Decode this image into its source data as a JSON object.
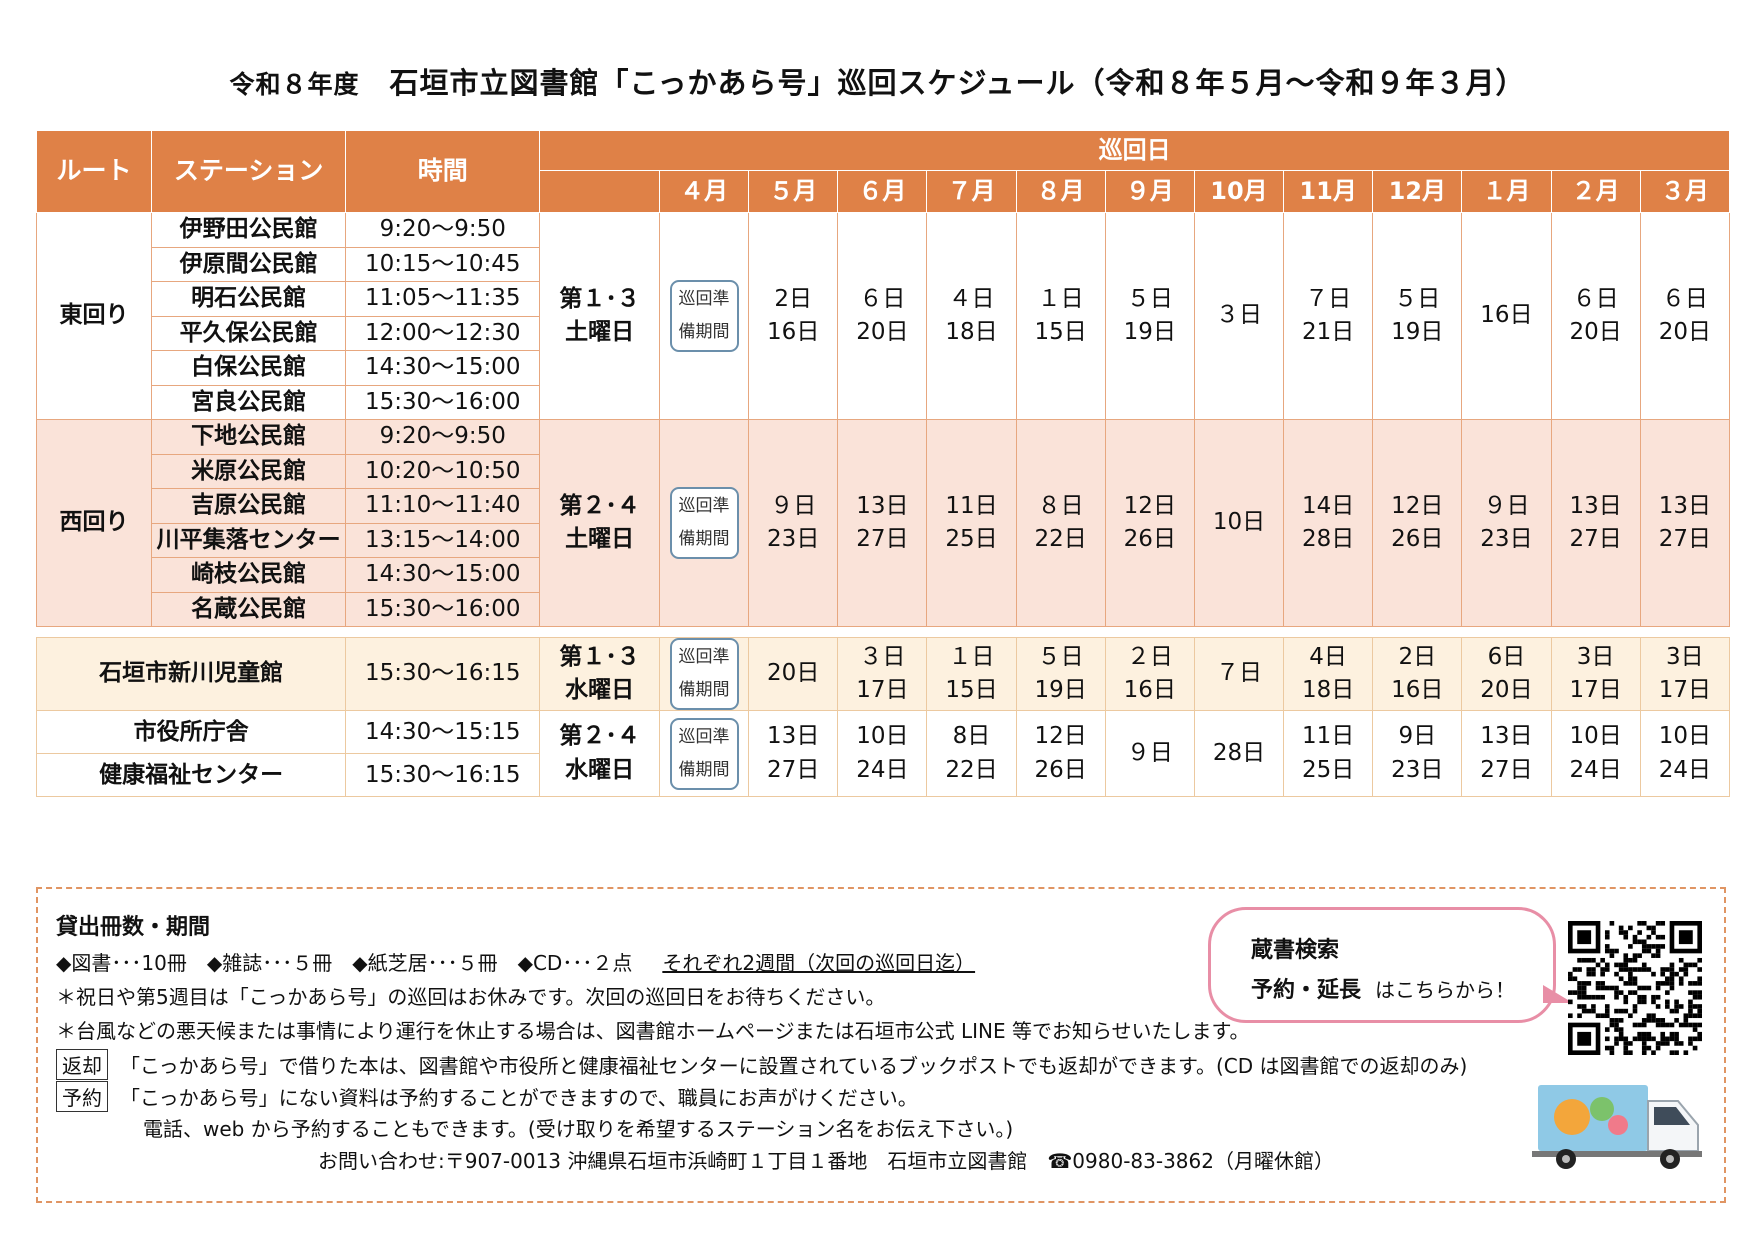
{
  "title": {
    "pre": "令和８年度",
    "main": "石垣市立図書館「こっかあら号」巡回スケジュール（令和８年５月～令和９年３月）"
  },
  "header": {
    "route": "ルート",
    "station": "ステーション",
    "time": "時間",
    "round_day": "巡回日",
    "months": [
      "４月",
      "５月",
      "６月",
      "７月",
      "８月",
      "９月",
      "10月",
      "11月",
      "12月",
      "１月",
      "２月",
      "３月"
    ]
  },
  "prep_lines": [
    "巡回準",
    "備期間"
  ],
  "east": {
    "route": "東回り",
    "stations": [
      {
        "name": "伊野田公民館",
        "time": "9:20～9:50"
      },
      {
        "name": "伊原間公民館",
        "time": "10:15～10:45"
      },
      {
        "name": "明石公民館",
        "time": "11:05～11:35"
      },
      {
        "name": "平久保公民館",
        "time": "12:00～12:30"
      },
      {
        "name": "白保公民館",
        "time": "14:30～15:00"
      },
      {
        "name": "宮良公民館",
        "time": "15:30～16:00"
      }
    ],
    "week": [
      "第１･３",
      "土曜日"
    ],
    "dates": [
      [
        "2日",
        "16日"
      ],
      [
        "６日",
        "20日"
      ],
      [
        "４日",
        "18日"
      ],
      [
        "１日",
        "15日"
      ],
      [
        "５日",
        "19日"
      ],
      [
        "３日"
      ],
      [
        "７日",
        "21日"
      ],
      [
        "５日",
        "19日"
      ],
      [
        "16日"
      ],
      [
        "６日",
        "20日"
      ],
      [
        "６日",
        "20日"
      ]
    ]
  },
  "west": {
    "route": "西回り",
    "stations": [
      {
        "name": "下地公民館",
        "time": "9:20～9:50"
      },
      {
        "name": "米原公民館",
        "time": "10:20～10:50"
      },
      {
        "name": "吉原公民館",
        "time": "11:10～11:40"
      },
      {
        "name": "川平集落センター",
        "time": "13:15～14:00"
      },
      {
        "name": "崎枝公民館",
        "time": "14:30～15:00"
      },
      {
        "name": "名蔵公民館",
        "time": "15:30～16:00"
      }
    ],
    "week": [
      "第２･４",
      "土曜日"
    ],
    "dates": [
      [
        "９日",
        "23日"
      ],
      [
        "13日",
        "27日"
      ],
      [
        "11日",
        "25日"
      ],
      [
        "８日",
        "22日"
      ],
      [
        "12日",
        "26日"
      ],
      [
        "10日"
      ],
      [
        "14日",
        "28日"
      ],
      [
        "12日",
        "26日"
      ],
      [
        "９日",
        "23日"
      ],
      [
        "13日",
        "27日"
      ],
      [
        "13日",
        "27日"
      ]
    ]
  },
  "kids": {
    "station": "石垣市新川児童館",
    "time": "15:30～16:15",
    "week": [
      "第１･３",
      "水曜日"
    ],
    "dates": [
      [
        "20日"
      ],
      [
        "３日",
        "17日"
      ],
      [
        "１日",
        "15日"
      ],
      [
        "５日",
        "19日"
      ],
      [
        "２日",
        "16日"
      ],
      [
        "７日"
      ],
      [
        "4日",
        "18日"
      ],
      [
        "2日",
        "16日"
      ],
      [
        "6日",
        "20日"
      ],
      [
        "3日",
        "17日"
      ],
      [
        "3日",
        "17日"
      ]
    ]
  },
  "city": {
    "stations": [
      {
        "name": "市役所庁舎",
        "time": "14:30～15:15"
      },
      {
        "name": "健康福祉センター",
        "time": "15:30～16:15"
      }
    ],
    "week": [
      "第２･４",
      "水曜日"
    ],
    "dates": [
      [
        "13日",
        "27日"
      ],
      [
        "10日",
        "24日"
      ],
      [
        "8日",
        "22日"
      ],
      [
        "12日",
        "26日"
      ],
      [
        "９日"
      ],
      [
        "28日"
      ],
      [
        "11日",
        "25日"
      ],
      [
        "9日",
        "23日"
      ],
      [
        "13日",
        "27日"
      ],
      [
        "10日",
        "24日"
      ],
      [
        "10日",
        "24日"
      ]
    ]
  },
  "info": {
    "heading": "貸出冊数・期間",
    "loan_items": "◆図書･･･10冊　◆雑誌･･･５冊　◆紙芝居･･･５冊　◆CD･･･２点",
    "loan_period": "それぞれ2週間（次回の巡回日迄）",
    "note1": "＊祝日や第5週目は「こっかあら号」の巡回はお休みです。次回の巡回日をお待ちください。",
    "note2": "＊台風などの悪天候または事情により運行を休止する場合は、図書館ホームページまたは石垣市公式 LINE 等でお知らせいたします。",
    "return_tag": "返却",
    "return_text": "「こっかあら号」で借りた本は、図書館や市役所と健康福祉センターに設置されているブックポストでも返却ができます。(CD は図書館での返却のみ)",
    "reserve_tag": "予約",
    "reserve_text": "「こっかあら号」にない資料は予約することができますので、職員にお声がけください。",
    "reserve_text2": "電話、web から予約することもできます。(受け取りを希望するステーション名をお伝え下さい。)",
    "contact": "お問い合わせ:〒907-0013 沖縄県石垣市浜崎町１丁目１番地　石垣市立図書館　☎0980-83-3862（月曜休館）",
    "bubble_line1": "蔵書検索",
    "bubble_line2": "予約・延長",
    "bubble_line2b": "はこちらから！"
  },
  "colors": {
    "header": "#df8147",
    "west_bg": "#fae3d9",
    "kids_bg": "#fdf1df",
    "border": "#e7a77f",
    "bubble": "#e88ea6"
  }
}
